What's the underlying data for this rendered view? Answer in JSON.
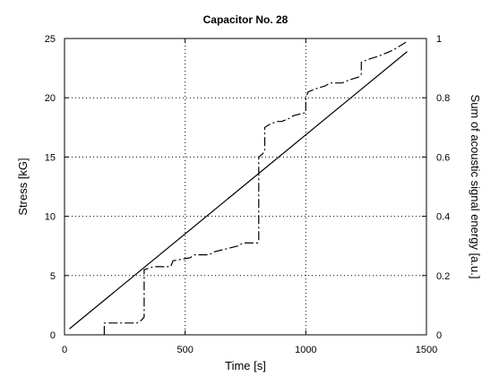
{
  "chart_data": {
    "type": "line",
    "title": "Capacitor No. 28",
    "xlabel": "Time [s]",
    "ylabel": "Stress  [kG]",
    "y2label": "Sum of acoustic signal energy  [a.u.]",
    "xlim": [
      0,
      1500
    ],
    "ylim": [
      0,
      25
    ],
    "y2lim": [
      0,
      1
    ],
    "xticks": [
      0,
      500,
      1000,
      1500
    ],
    "yticks": [
      0,
      5,
      10,
      15,
      20,
      25
    ],
    "y2ticks": [
      0,
      0.2,
      0.4,
      0.6,
      0.8,
      1
    ],
    "xtick_labels": [
      "0",
      "500",
      "1000",
      "1500"
    ],
    "ytick_labels": [
      "0",
      "5",
      "10",
      "15",
      "20",
      "25"
    ],
    "y2tick_labels": [
      "0",
      "0.2",
      "0.4",
      "0.6",
      "0.8",
      "1"
    ],
    "grid": true,
    "series": [
      {
        "axis": "left",
        "style": "solid",
        "color": "#000000",
        "x": [
          20,
          1420
        ],
        "y": [
          0.5,
          23.9
        ]
      },
      {
        "axis": "right",
        "style": "dashdot",
        "color": "#000000",
        "x": [
          165,
          165,
          300,
          320,
          330,
          330,
          370,
          440,
          450,
          520,
          540,
          600,
          620,
          720,
          740,
          800,
          805,
          805,
          820,
          830,
          830,
          850,
          880,
          900,
          930,
          950,
          1000,
          1000,
          1010,
          1040,
          1080,
          1100,
          1150,
          1180,
          1220,
          1230,
          1230,
          1260,
          1300,
          1330,
          1360,
          1380,
          1400,
          1420
        ],
        "y": [
          0,
          0.04,
          0.04,
          0.05,
          0.06,
          0.22,
          0.23,
          0.23,
          0.25,
          0.26,
          0.27,
          0.27,
          0.28,
          0.3,
          0.31,
          0.31,
          0.32,
          0.6,
          0.61,
          0.62,
          0.7,
          0.71,
          0.72,
          0.72,
          0.73,
          0.74,
          0.75,
          0.8,
          0.82,
          0.83,
          0.84,
          0.85,
          0.85,
          0.86,
          0.87,
          0.88,
          0.92,
          0.93,
          0.94,
          0.95,
          0.96,
          0.97,
          0.98,
          0.99
        ]
      }
    ]
  }
}
